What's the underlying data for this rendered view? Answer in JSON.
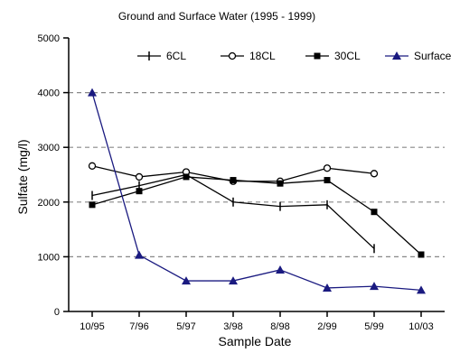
{
  "chart_data": {
    "type": "line",
    "title": "Ground and Surface Water (1995 - 1999)",
    "xlabel": "Sample Date",
    "ylabel": "Sulfate (mg/l)",
    "categories": [
      "10/95",
      "7/96",
      "5/97",
      "3/98",
      "8/98",
      "2/99",
      "5/99",
      "10/03"
    ],
    "ylim": [
      0,
      5000
    ],
    "yticks": [
      0,
      1000,
      2000,
      3000,
      4000,
      5000
    ],
    "grid": "horizontal dashed",
    "legend": "top",
    "series": [
      {
        "name": "6CL",
        "marker": "tick",
        "color": "#000000",
        "values": [
          2120,
          2300,
          2500,
          2000,
          1920,
          1950,
          1150,
          null
        ]
      },
      {
        "name": "18CL",
        "marker": "open-circle",
        "color": "#000000",
        "values": [
          2660,
          2460,
          2550,
          2380,
          2380,
          2620,
          2520,
          null
        ]
      },
      {
        "name": "30CL",
        "marker": "filled-square",
        "color": "#000000",
        "values": [
          1950,
          2200,
          2460,
          2400,
          2340,
          2400,
          1820,
          1040
        ]
      },
      {
        "name": "Surface",
        "marker": "filled-triangle",
        "color": "#1a1a80",
        "values": [
          4000,
          1030,
          560,
          560,
          760,
          430,
          460,
          390
        ]
      }
    ]
  }
}
